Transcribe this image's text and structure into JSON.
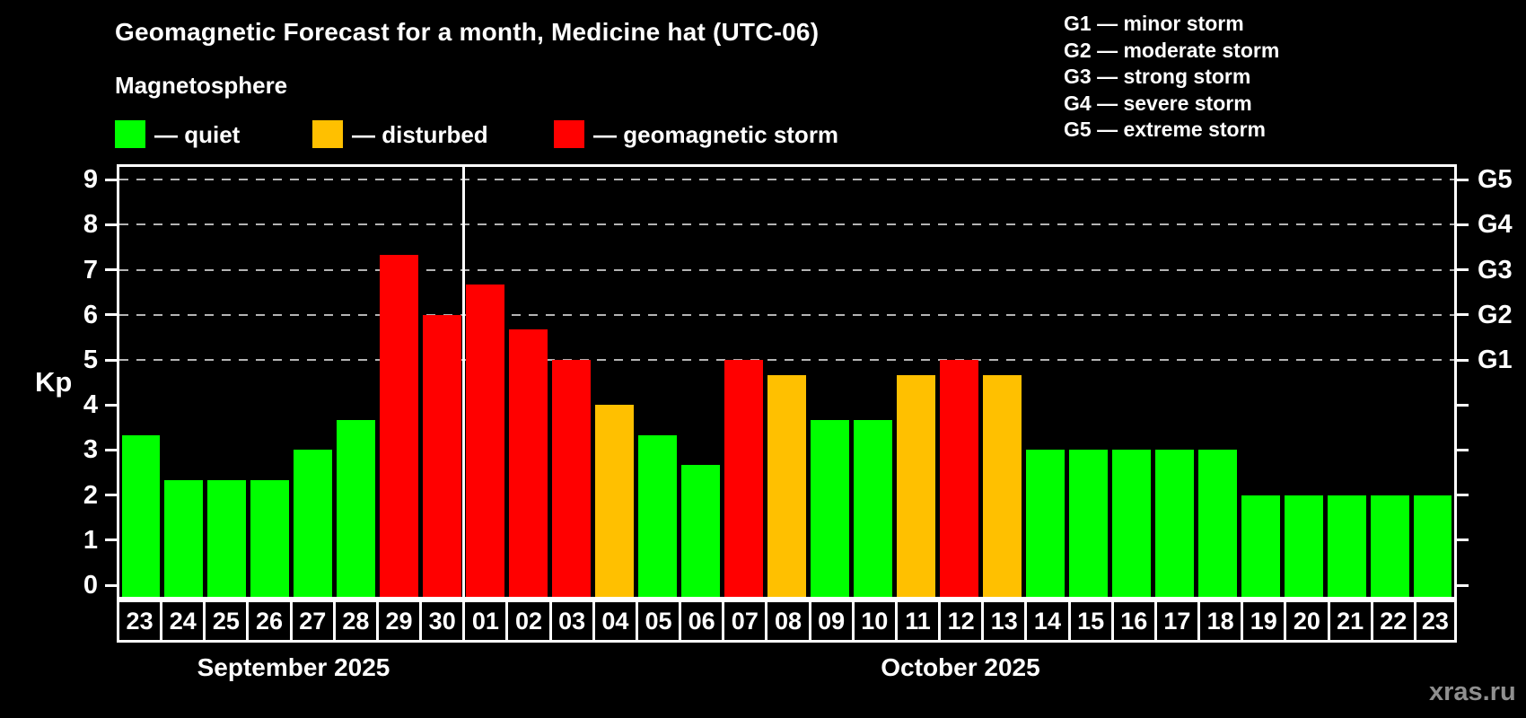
{
  "title": "Geomagnetic Forecast for a month, Medicine hat (UTC-06)",
  "subtitle": "Magnetosphere",
  "legend": {
    "items": [
      {
        "name": "quiet",
        "label": "— quiet",
        "color": "#00ff00"
      },
      {
        "name": "disturbed",
        "label": "— disturbed",
        "color": "#ffc000"
      },
      {
        "name": "storm",
        "label": "— geomagnetic storm",
        "color": "#ff0000"
      }
    ]
  },
  "g_legend": [
    "G1 — minor storm",
    "G2 — moderate storm",
    "G3 — strong storm",
    "G4 — severe storm",
    "G5 — extreme storm"
  ],
  "months": [
    {
      "label": "September 2025"
    },
    {
      "label": "October 2025"
    }
  ],
  "watermark": "xras.ru",
  "chart_data": {
    "type": "bar",
    "title": "Geomagnetic Forecast for a month, Medicine hat (UTC-06)",
    "ylabel": "Kp",
    "ylim": [
      0,
      9
    ],
    "y_ticks": [
      0,
      1,
      2,
      3,
      4,
      5,
      6,
      7,
      8,
      9
    ],
    "gridlines_at_kp": [
      5,
      6,
      7,
      8,
      9
    ],
    "grid_style": "dashed",
    "legend_position": "top",
    "g_scale": [
      {
        "kp": 5,
        "label": "G1"
      },
      {
        "kp": 6,
        "label": "G2"
      },
      {
        "kp": 7,
        "label": "G3"
      },
      {
        "kp": 8,
        "label": "G4"
      },
      {
        "kp": 9,
        "label": "G5"
      }
    ],
    "status_colors": {
      "quiet": "#00ff00",
      "disturbed": "#ffc000",
      "storm": "#ff0000"
    },
    "bars": [
      {
        "month": "September 2025",
        "day": "23",
        "kp": 3.33,
        "status": "quiet"
      },
      {
        "month": "September 2025",
        "day": "24",
        "kp": 2.33,
        "status": "quiet"
      },
      {
        "month": "September 2025",
        "day": "25",
        "kp": 2.33,
        "status": "quiet"
      },
      {
        "month": "September 2025",
        "day": "26",
        "kp": 2.33,
        "status": "quiet"
      },
      {
        "month": "September 2025",
        "day": "27",
        "kp": 3.0,
        "status": "quiet"
      },
      {
        "month": "September 2025",
        "day": "28",
        "kp": 3.67,
        "status": "quiet"
      },
      {
        "month": "September 2025",
        "day": "29",
        "kp": 7.33,
        "status": "storm"
      },
      {
        "month": "September 2025",
        "day": "30",
        "kp": 6.0,
        "status": "storm"
      },
      {
        "month": "October 2025",
        "day": "01",
        "kp": 6.67,
        "status": "storm"
      },
      {
        "month": "October 2025",
        "day": "02",
        "kp": 5.67,
        "status": "storm"
      },
      {
        "month": "October 2025",
        "day": "03",
        "kp": 5.0,
        "status": "storm"
      },
      {
        "month": "October 2025",
        "day": "04",
        "kp": 4.0,
        "status": "disturbed"
      },
      {
        "month": "October 2025",
        "day": "05",
        "kp": 3.33,
        "status": "quiet"
      },
      {
        "month": "October 2025",
        "day": "06",
        "kp": 2.67,
        "status": "quiet"
      },
      {
        "month": "October 2025",
        "day": "07",
        "kp": 5.0,
        "status": "storm"
      },
      {
        "month": "October 2025",
        "day": "08",
        "kp": 4.67,
        "status": "disturbed"
      },
      {
        "month": "October 2025",
        "day": "09",
        "kp": 3.67,
        "status": "quiet"
      },
      {
        "month": "October 2025",
        "day": "10",
        "kp": 3.67,
        "status": "quiet"
      },
      {
        "month": "October 2025",
        "day": "11",
        "kp": 4.67,
        "status": "disturbed"
      },
      {
        "month": "October 2025",
        "day": "12",
        "kp": 5.0,
        "status": "storm"
      },
      {
        "month": "October 2025",
        "day": "13",
        "kp": 4.67,
        "status": "disturbed"
      },
      {
        "month": "October 2025",
        "day": "14",
        "kp": 3.0,
        "status": "quiet"
      },
      {
        "month": "October 2025",
        "day": "15",
        "kp": 3.0,
        "status": "quiet"
      },
      {
        "month": "October 2025",
        "day": "16",
        "kp": 3.0,
        "status": "quiet"
      },
      {
        "month": "October 2025",
        "day": "17",
        "kp": 3.0,
        "status": "quiet"
      },
      {
        "month": "October 2025",
        "day": "18",
        "kp": 3.0,
        "status": "quiet"
      },
      {
        "month": "October 2025",
        "day": "19",
        "kp": 2.0,
        "status": "quiet"
      },
      {
        "month": "October 2025",
        "day": "20",
        "kp": 2.0,
        "status": "quiet"
      },
      {
        "month": "October 2025",
        "day": "21",
        "kp": 2.0,
        "status": "quiet"
      },
      {
        "month": "October 2025",
        "day": "22",
        "kp": 2.0,
        "status": "quiet"
      },
      {
        "month": "October 2025",
        "day": "23",
        "kp": 2.0,
        "status": "quiet"
      }
    ]
  }
}
